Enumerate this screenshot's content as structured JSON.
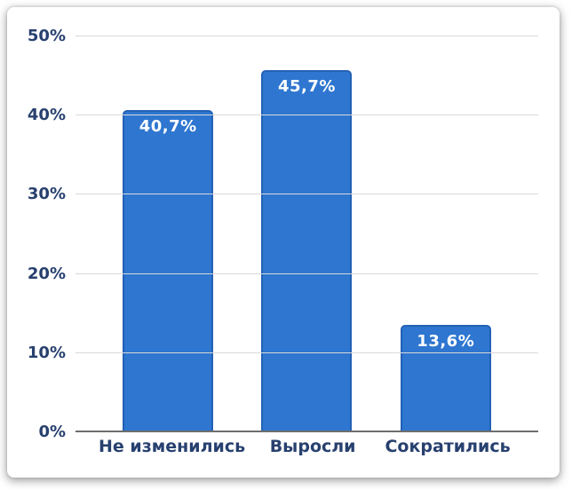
{
  "chart_data": {
    "type": "bar",
    "title": "",
    "xlabel": "",
    "ylabel": "",
    "categories": [
      "Не изменились",
      "Выросли",
      "Сократились"
    ],
    "values": [
      40.7,
      45.7,
      13.6
    ],
    "value_labels": [
      "40,7%",
      "45,7%",
      "13,6%"
    ],
    "ylim": [
      0,
      50
    ],
    "yticks": [
      0,
      10,
      20,
      30,
      40,
      50
    ],
    "ytick_labels": [
      "0%",
      "10%",
      "20%",
      "30%",
      "40%",
      "50%"
    ],
    "grid": true,
    "legend": false,
    "colors": {
      "bar_fill": "#2e76d0",
      "bar_border": "#2361b5",
      "bar_label_text": "#ffffff",
      "axis_text": "#27406f",
      "gridline": "#d9d9d9",
      "axis_line": "#6e6e6e",
      "card_background": "#ffffff"
    }
  }
}
